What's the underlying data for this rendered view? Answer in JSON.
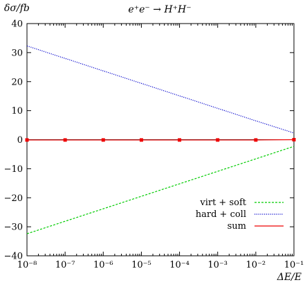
{
  "chart_data": {
    "type": "line",
    "title": "e⁺e⁻ → H⁺H⁻",
    "ylabel": "δσ/fb",
    "xlabel": "ΔE/E",
    "xscale": "log",
    "xlim": [
      1e-08,
      0.1
    ],
    "ylim": [
      -40,
      40
    ],
    "grid": false,
    "legend_position": "bottom-right",
    "x_tick_labels": [
      "10⁻⁸",
      "10⁻⁷",
      "10⁻⁶",
      "10⁻⁵",
      "10⁻⁴",
      "10⁻³",
      "10⁻²",
      "10⁻¹"
    ],
    "x_tick_values": [
      1e-08,
      1e-07,
      1e-06,
      1e-05,
      0.0001,
      0.001,
      0.01,
      0.1
    ],
    "y_tick_labels": [
      "−40",
      "−30",
      "−20",
      "−10",
      "0",
      "10",
      "20",
      "30",
      "40"
    ],
    "y_tick_values": [
      -40,
      -30,
      -20,
      -10,
      0,
      10,
      20,
      30,
      40
    ],
    "x": [
      1e-08,
      1e-07,
      1e-06,
      1e-05,
      0.0001,
      0.001,
      0.01,
      0.1
    ],
    "series": [
      {
        "name": "virt + soft",
        "color": "#00cc00",
        "style": "dashed",
        "values": [
          -32.4,
          -28.1,
          -23.8,
          -19.5,
          -15.2,
          -10.9,
          -6.6,
          -2.3
        ]
      },
      {
        "name": "hard + coll",
        "color": "#0000cc",
        "style": "dotted",
        "values": [
          32.3,
          28.0,
          23.7,
          19.4,
          15.1,
          10.8,
          6.5,
          2.3
        ]
      },
      {
        "name": "sum",
        "color": "#ee0000",
        "style": "solid",
        "marker": "square",
        "values": [
          -0.1,
          -0.1,
          -0.1,
          -0.1,
          -0.1,
          -0.1,
          -0.1,
          0.0
        ]
      }
    ]
  }
}
